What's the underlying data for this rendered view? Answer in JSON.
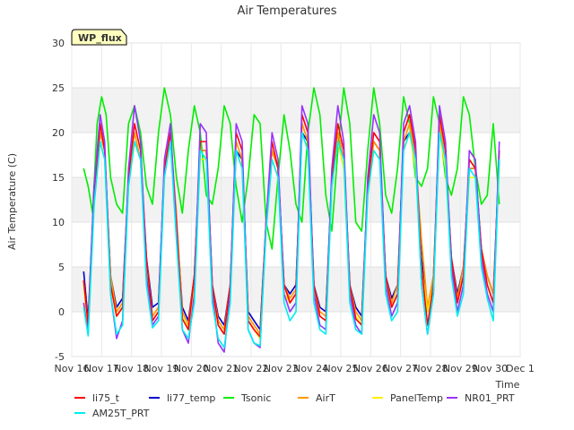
{
  "chart_data": {
    "type": "line",
    "title": "Air Temperatures",
    "xlabel": "Time",
    "ylabel": "Air Temperature (C)",
    "ylim": [
      -5,
      30
    ],
    "xlim": [
      0,
      15
    ],
    "yticks": [
      -5,
      0,
      5,
      10,
      15,
      20,
      25,
      30
    ],
    "xticks": [
      {
        "x": 0,
        "label": "Nov 16"
      },
      {
        "x": 1,
        "label": "Nov 17"
      },
      {
        "x": 2,
        "label": "Nov 18"
      },
      {
        "x": 3,
        "label": "Nov 19"
      },
      {
        "x": 4,
        "label": "Nov 20"
      },
      {
        "x": 5,
        "label": "Nov 21"
      },
      {
        "x": 6,
        "label": "Nov 22"
      },
      {
        "x": 7,
        "label": "Nov 23"
      },
      {
        "x": 8,
        "label": "Nov 24"
      },
      {
        "x": 9,
        "label": "Nov 25"
      },
      {
        "x": 10,
        "label": "Nov 26"
      },
      {
        "x": 11,
        "label": "Nov 27"
      },
      {
        "x": 12,
        "label": "Nov 28"
      },
      {
        "x": 13,
        "label": "Nov 29"
      },
      {
        "x": 14,
        "label": "Nov 30"
      },
      {
        "x": 15,
        "label": "Dec 1"
      }
    ],
    "x_unit": "days since Nov 16",
    "grid": true,
    "legend_position": "bottom",
    "annotation": {
      "text": "WP_flux",
      "color": "#8b0000",
      "background": "#ffffc0"
    },
    "series": [
      {
        "name": "li75_t",
        "color": "#ff0000",
        "x": [
          0.4,
          0.55,
          0.75,
          0.95,
          1.1,
          1.3,
          1.5,
          1.7,
          1.9,
          2.1,
          2.3,
          2.5,
          2.7,
          2.9,
          3.1,
          3.3,
          3.5,
          3.7,
          3.9,
          4.1,
          4.3,
          4.5,
          4.7,
          4.9,
          5.1,
          5.3,
          5.5,
          5.7,
          5.9,
          6.1,
          6.3,
          6.5,
          6.7,
          6.9,
          7.1,
          7.3,
          7.5,
          7.7,
          7.9,
          8.1,
          8.3,
          8.5,
          8.7,
          8.9,
          9.1,
          9.3,
          9.5,
          9.7,
          9.9,
          10.1,
          10.3,
          10.5,
          10.7,
          10.9,
          11.1,
          11.3,
          11.5,
          11.7,
          11.9,
          12.1,
          12.3,
          12.5,
          12.7,
          12.9,
          13.1,
          13.3,
          13.5,
          13.7,
          13.9,
          14.1,
          14.3
        ],
        "y": [
          3.5,
          -1.5,
          13,
          21,
          18,
          3,
          -0.5,
          0.5,
          15,
          21,
          18,
          6,
          -1,
          0,
          16,
          20,
          10,
          -0.8,
          -2,
          4,
          19,
          19,
          3,
          -1.5,
          -2.5,
          3,
          20,
          18,
          -1,
          -2,
          -2.8,
          10,
          19,
          16,
          3,
          1,
          2,
          22,
          20,
          3,
          -0.5,
          -1,
          15,
          21,
          18,
          3,
          -0.8,
          -1.5,
          14,
          20,
          19,
          4,
          0.5,
          2,
          20,
          22,
          18,
          5,
          -1.5,
          3,
          22,
          18,
          6,
          1,
          4,
          17,
          16,
          7,
          3,
          1,
          18
        ]
      },
      {
        "name": "li77_temp",
        "color": "#0000cc",
        "x": [
          0.4,
          0.55,
          0.75,
          0.95,
          1.1,
          1.3,
          1.5,
          1.7,
          1.9,
          2.1,
          2.3,
          2.5,
          2.7,
          2.9,
          3.1,
          3.3,
          3.5,
          3.7,
          3.9,
          4.1,
          4.3,
          4.5,
          4.7,
          4.9,
          5.1,
          5.3,
          5.5,
          5.7,
          5.9,
          6.1,
          6.3,
          6.5,
          6.7,
          6.9,
          7.1,
          7.3,
          7.5,
          7.7,
          7.9,
          8.1,
          8.3,
          8.5,
          8.7,
          8.9,
          9.1,
          9.3,
          9.5,
          9.7,
          9.9,
          10.1,
          10.3,
          10.5,
          10.7,
          10.9,
          11.1,
          11.3,
          11.5,
          11.7,
          11.9,
          12.1,
          12.3,
          12.5,
          12.7,
          12.9,
          13.1,
          13.3,
          13.5,
          13.7,
          13.9,
          14.1,
          14.3
        ],
        "y": [
          4.5,
          -1,
          14,
          20,
          18,
          4,
          0.5,
          1.5,
          15,
          19,
          17,
          6,
          0.5,
          1,
          16,
          19,
          10,
          0.5,
          -1,
          4,
          18,
          18,
          3,
          -0.5,
          -1.5,
          3,
          18,
          17,
          0,
          -1,
          -2,
          10,
          18,
          16,
          3,
          2,
          3,
          20,
          19,
          3,
          0.5,
          0,
          15,
          20,
          17,
          3,
          0.5,
          -0.5,
          14,
          19,
          18,
          4,
          1.5,
          3,
          19,
          20,
          17,
          6,
          0,
          4,
          20,
          17,
          6,
          2,
          5,
          16,
          16,
          7,
          4,
          2,
          17
        ]
      },
      {
        "name": "Tsonic",
        "color": "#00ee00",
        "x": [
          0.4,
          0.55,
          0.7,
          0.85,
          1.0,
          1.15,
          1.3,
          1.5,
          1.7,
          1.9,
          2.1,
          2.3,
          2.5,
          2.7,
          2.9,
          3.1,
          3.3,
          3.5,
          3.7,
          3.9,
          4.1,
          4.3,
          4.5,
          4.7,
          4.9,
          5.1,
          5.3,
          5.5,
          5.7,
          5.9,
          6.1,
          6.3,
          6.5,
          6.7,
          6.9,
          7.1,
          7.3,
          7.5,
          7.7,
          7.9,
          8.1,
          8.3,
          8.5,
          8.7,
          8.9,
          9.1,
          9.3,
          9.5,
          9.7,
          9.9,
          10.1,
          10.3,
          10.5,
          10.7,
          10.9,
          11.1,
          11.3,
          11.5,
          11.7,
          11.9,
          12.1,
          12.3,
          12.5,
          12.7,
          12.9,
          13.1,
          13.3,
          13.5,
          13.7,
          13.9,
          14.1,
          14.3
        ],
        "y": [
          16,
          14,
          11,
          21,
          24,
          22,
          15,
          12,
          11,
          21,
          23,
          20,
          14,
          12,
          20,
          25,
          22,
          15,
          11,
          18,
          23,
          20,
          13,
          12,
          16,
          23,
          21,
          14,
          10,
          15,
          22,
          21,
          10,
          7,
          15,
          22,
          18,
          12,
          10,
          20,
          25,
          22,
          13,
          9,
          18,
          25,
          21,
          10,
          9,
          18,
          25,
          21,
          13,
          11,
          16,
          24,
          21,
          15,
          14,
          16,
          24,
          21,
          15,
          13,
          16,
          24,
          22,
          16,
          12,
          13,
          21,
          12
        ]
      },
      {
        "name": "AirT",
        "color": "#ff9900",
        "x": [
          0.4,
          0.55,
          0.75,
          0.95,
          1.1,
          1.3,
          1.5,
          1.7,
          1.9,
          2.1,
          2.3,
          2.5,
          2.7,
          2.9,
          3.1,
          3.3,
          3.5,
          3.7,
          3.9,
          4.1,
          4.3,
          4.5,
          4.7,
          4.9,
          5.1,
          5.3,
          5.5,
          5.7,
          5.9,
          6.1,
          6.3,
          6.5,
          6.7,
          6.9,
          7.1,
          7.3,
          7.5,
          7.7,
          7.9,
          8.1,
          8.3,
          8.5,
          8.7,
          8.9,
          9.1,
          9.3,
          9.5,
          9.7,
          9.9,
          10.1,
          10.3,
          10.5,
          10.7,
          10.9,
          11.1,
          11.3,
          11.5,
          11.7,
          11.9,
          12.1,
          12.3,
          12.5,
          12.7,
          12.9,
          13.1,
          13.3,
          13.5,
          13.7,
          13.9,
          14.1,
          14.3
        ],
        "y": [
          3.5,
          -1.5,
          13,
          20,
          18,
          4,
          0,
          1,
          15,
          20,
          17,
          6,
          -0.5,
          0.5,
          15,
          20,
          11,
          0,
          -1.5,
          4,
          18,
          18,
          3,
          -1,
          -2,
          3,
          19,
          17,
          -0.5,
          -1.5,
          -2.5,
          10,
          18,
          16,
          3,
          1.5,
          2.5,
          21,
          19,
          3,
          0,
          -0.5,
          15,
          20,
          17,
          3,
          0,
          -1,
          14,
          19,
          18,
          4,
          1,
          3,
          19,
          21,
          17,
          8,
          0.5,
          4,
          21,
          17,
          6,
          1.5,
          5,
          16,
          16,
          7,
          4,
          2,
          17
        ]
      },
      {
        "name": "PanelTemp",
        "color": "#ffee00",
        "x": [
          0.4,
          0.55,
          0.75,
          0.95,
          1.1,
          1.3,
          1.5,
          1.7,
          1.9,
          2.1,
          2.3,
          2.5,
          2.7,
          2.9,
          3.1,
          3.3,
          3.5,
          3.7,
          3.9,
          4.1,
          4.3,
          4.5,
          4.7,
          4.9,
          5.1,
          5.3,
          5.5,
          5.7,
          5.9,
          6.1,
          6.3,
          6.5,
          6.7,
          6.9,
          7.1,
          7.3,
          7.5,
          7.7,
          7.9,
          8.1,
          8.3,
          8.5,
          8.7,
          8.9,
          9.1,
          9.3,
          9.5,
          9.7,
          9.9,
          10.1,
          10.3,
          10.5,
          10.7,
          10.9,
          11.1,
          11.3,
          11.5,
          11.7,
          11.9,
          12.1,
          12.3,
          12.5,
          12.7,
          12.9,
          13.1,
          13.3,
          13.5,
          13.7,
          13.9,
          14.1,
          14.3
        ],
        "y": [
          3,
          -2,
          12,
          19,
          17,
          3,
          -0.5,
          0.5,
          14,
          19,
          17,
          5,
          -1,
          0,
          15,
          19,
          10,
          -0.5,
          -2,
          3,
          17,
          17,
          2,
          -1.5,
          -2.5,
          2,
          18,
          16,
          -1,
          -2,
          -3,
          9,
          17,
          15,
          2,
          1,
          2,
          20,
          18,
          2,
          -0.5,
          -1,
          14,
          19,
          16,
          2,
          -0.5,
          -1.5,
          13,
          18,
          17,
          3,
          0.5,
          2,
          18,
          20,
          16,
          5,
          0,
          3,
          20,
          16,
          5,
          1,
          4,
          15,
          15,
          6,
          3,
          1,
          16
        ]
      },
      {
        "name": "NR01_PRT",
        "color": "#9933ff",
        "x": [
          0.4,
          0.55,
          0.75,
          0.95,
          1.1,
          1.3,
          1.5,
          1.7,
          1.9,
          2.1,
          2.3,
          2.5,
          2.7,
          2.9,
          3.1,
          3.3,
          3.5,
          3.7,
          3.9,
          4.1,
          4.3,
          4.5,
          4.7,
          4.9,
          5.1,
          5.3,
          5.5,
          5.7,
          5.9,
          6.1,
          6.3,
          6.5,
          6.7,
          6.9,
          7.1,
          7.3,
          7.5,
          7.7,
          7.9,
          8.1,
          8.3,
          8.5,
          8.7,
          8.9,
          9.1,
          9.3,
          9.5,
          9.7,
          9.9,
          10.1,
          10.3,
          10.5,
          10.7,
          10.9,
          11.1,
          11.3,
          11.5,
          11.7,
          11.9,
          12.1,
          12.3,
          12.5,
          12.7,
          12.9,
          13.1,
          13.3,
          13.5,
          13.7,
          13.9,
          14.1,
          14.3
        ],
        "y": [
          1,
          -2.5,
          14,
          22,
          19,
          2,
          -3,
          -1,
          16,
          23,
          19,
          4,
          -1.5,
          -0.5,
          17,
          21,
          9,
          -2,
          -3.5,
          2,
          21,
          20,
          2,
          -3.5,
          -4.5,
          2,
          21,
          19,
          -2,
          -3.5,
          -4,
          10,
          20,
          17,
          2,
          0,
          1,
          23,
          21,
          2,
          -1.5,
          -2,
          16,
          23,
          19,
          2,
          -1.5,
          -2.5,
          15,
          22,
          20,
          3,
          -0.5,
          1,
          21,
          23,
          19,
          3,
          -2.5,
          2,
          23,
          19,
          5,
          0,
          3,
          18,
          17,
          6,
          2,
          0,
          19
        ]
      },
      {
        "name": "AM25T_PRT",
        "color": "#00eeee",
        "x": [
          0.4,
          0.55,
          0.75,
          0.95,
          1.1,
          1.3,
          1.5,
          1.7,
          1.9,
          2.1,
          2.3,
          2.5,
          2.7,
          2.9,
          3.1,
          3.3,
          3.5,
          3.7,
          3.9,
          4.1,
          4.3,
          4.5,
          4.7,
          4.9,
          5.1,
          5.3,
          5.5,
          5.7,
          5.9,
          6.1,
          6.3,
          6.5,
          6.7,
          6.9,
          7.1,
          7.3,
          7.5,
          7.7,
          7.9,
          8.1,
          8.3,
          8.5,
          8.7,
          8.9,
          9.1,
          9.3,
          9.5,
          9.7,
          9.9,
          10.1,
          10.3,
          10.5,
          10.7,
          10.9,
          11.1,
          11.3,
          11.5,
          11.7,
          11.9,
          12.1,
          12.3,
          12.5,
          12.7,
          12.9,
          13.1,
          13.3,
          13.5,
          13.7,
          13.9,
          14.1,
          14.3
        ],
        "y": [
          0.5,
          -2.7,
          12,
          19,
          17,
          2,
          -2.5,
          -1.5,
          14,
          19,
          17,
          3,
          -1.8,
          -1,
          15,
          19,
          8,
          -2,
          -3,
          1,
          18,
          17,
          1,
          -3,
          -4,
          1,
          18,
          16,
          -2,
          -3.5,
          -3.8,
          9,
          17,
          15,
          1,
          -1,
          0,
          20,
          18,
          1,
          -2,
          -2.5,
          14,
          19,
          17,
          1,
          -2,
          -2.5,
          13,
          18,
          17,
          2,
          -1,
          0,
          18,
          20,
          17,
          3,
          -2.5,
          2,
          20,
          17,
          4,
          -0.5,
          2,
          16,
          15,
          5,
          1.5,
          -1,
          17
        ]
      }
    ]
  }
}
